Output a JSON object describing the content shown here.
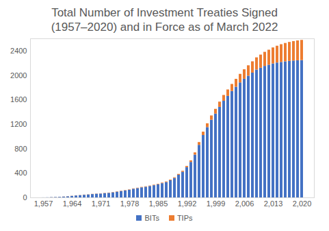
{
  "chart_data": {
    "type": "bar",
    "title": "Total Number of Investment Treaties Signed\n(1957–2020) and in Force as of March 2022",
    "x": [
      1957,
      1958,
      1959,
      1960,
      1961,
      1962,
      1963,
      1964,
      1965,
      1966,
      1967,
      1968,
      1969,
      1970,
      1971,
      1972,
      1973,
      1974,
      1975,
      1976,
      1977,
      1978,
      1979,
      1980,
      1981,
      1982,
      1983,
      1984,
      1985,
      1986,
      1987,
      1988,
      1989,
      1990,
      1991,
      1992,
      1993,
      1994,
      1995,
      1996,
      1997,
      1998,
      1999,
      2000,
      2001,
      2002,
      2003,
      2004,
      2005,
      2006,
      2007,
      2008,
      2009,
      2010,
      2011,
      2012,
      2013,
      2014,
      2015,
      2016,
      2017,
      2018,
      2019,
      2020
    ],
    "series": [
      {
        "name": "BITs",
        "color": "#4472c4",
        "values": [
          1,
          2,
          5,
          7,
          9,
          13,
          18,
          25,
          32,
          37,
          43,
          48,
          55,
          60,
          63,
          70,
          75,
          84,
          94,
          105,
          115,
          126,
          142,
          153,
          165,
          175,
          187,
          200,
          215,
          233,
          252,
          280,
          318,
          370,
          420,
          495,
          580,
          700,
          860,
          1020,
          1150,
          1270,
          1370,
          1480,
          1580,
          1660,
          1740,
          1810,
          1880,
          1940,
          1990,
          2040,
          2090,
          2120,
          2150,
          2170,
          2190,
          2205,
          2215,
          2225,
          2232,
          2238,
          2242,
          2245
        ]
      },
      {
        "name": "TIPs",
        "color": "#ed7d31",
        "values": [
          0,
          0,
          1,
          1,
          1,
          2,
          2,
          2,
          2,
          2,
          3,
          3,
          3,
          3,
          3,
          4,
          4,
          4,
          5,
          5,
          5,
          6,
          6,
          6,
          7,
          7,
          7,
          8,
          8,
          9,
          10,
          11,
          12,
          14,
          16,
          20,
          26,
          36,
          45,
          55,
          62,
          70,
          78,
          86,
          95,
          105,
          115,
          128,
          140,
          155,
          170,
          185,
          200,
          215,
          230,
          245,
          262,
          275,
          290,
          300,
          310,
          318,
          325,
          330
        ]
      }
    ],
    "xticks": [
      1957,
      1964,
      1971,
      1978,
      1985,
      1992,
      1999,
      2006,
      2013,
      2020
    ],
    "ylim": [
      0,
      2600
    ],
    "yticks": [
      0,
      400,
      800,
      1200,
      1600,
      2000,
      2400
    ],
    "stacked": true,
    "grid": false,
    "legend": "bottom"
  }
}
